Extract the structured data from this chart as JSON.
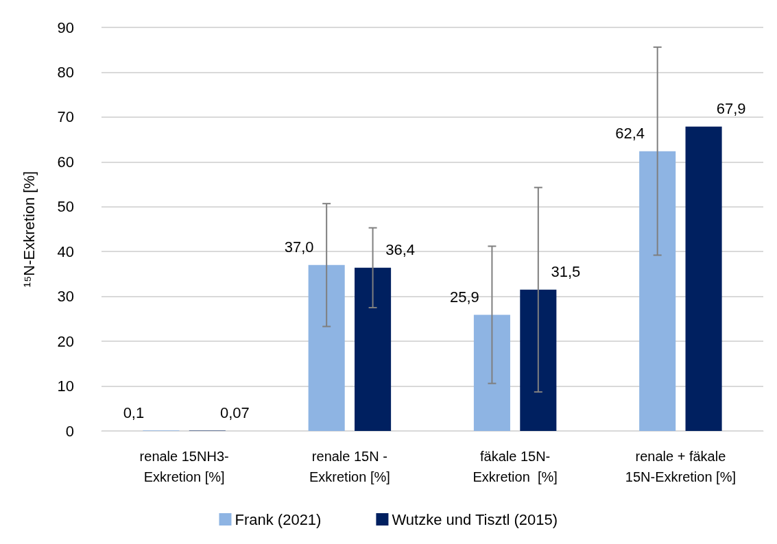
{
  "chart_data": {
    "type": "bar",
    "ylabel": "¹⁵N-Exkretion [%]",
    "categories": [
      "renale 15NH3-\nExkretion [%]",
      "renale 15N -\nExkretion [%]",
      "fäkale 15N-\nExkretion  [%]",
      "renale + fäkale\n15N-Exkretion [%]"
    ],
    "series": [
      {
        "name": "Frank (2021)",
        "color": "#8eb4e3",
        "values": [
          0.1,
          37.0,
          25.9,
          62.4
        ],
        "value_labels": [
          "0,1",
          "37,0",
          "25,9",
          "62,4"
        ],
        "errors": [
          null,
          13.7,
          15.3,
          23.2
        ]
      },
      {
        "name": "Wutzke und Tisztl (2015)",
        "color": "#002060",
        "values": [
          0.07,
          36.4,
          31.5,
          67.9
        ],
        "value_labels": [
          "0,07",
          "36,4",
          "31,5",
          "67,9"
        ],
        "errors": [
          null,
          8.9,
          22.8,
          null
        ]
      }
    ],
    "ylim": [
      0,
      90
    ],
    "yticks": [
      0,
      10,
      20,
      30,
      40,
      50,
      60,
      70,
      80,
      90
    ],
    "grid": "y",
    "legend": "bottom"
  }
}
